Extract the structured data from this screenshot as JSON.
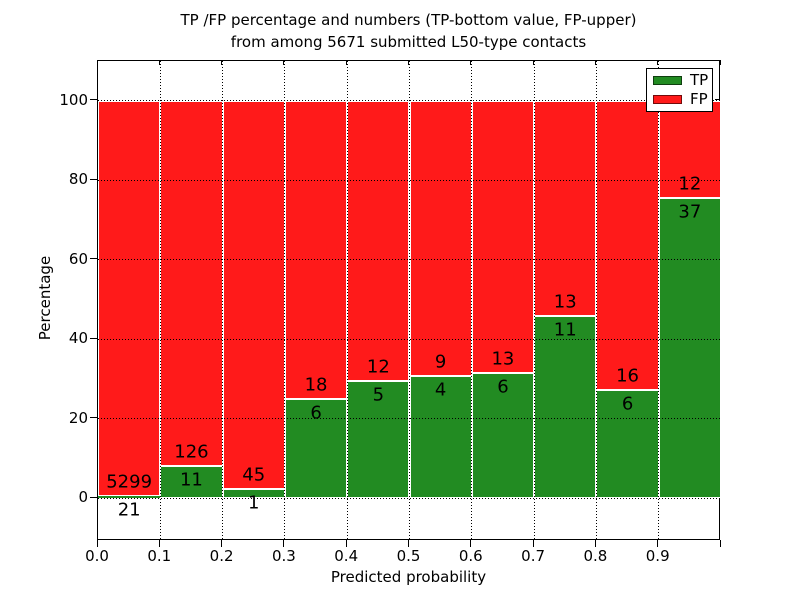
{
  "title": {
    "line1": "TP /FP percentage and numbers (TP-bottom value, FP-upper)",
    "line2": "from among 5671 submitted L50-type contacts"
  },
  "chart_data": {
    "type": "bar",
    "stacked": true,
    "normalized": "percent",
    "title": "TP /FP percentage and numbers (TP-bottom value, FP-upper) from among 5671 submitted L50-type contacts",
    "xlabel": "Predicted probability",
    "ylabel": "Percentage",
    "xlim": [
      0.0,
      1.0
    ],
    "ylim": [
      -10.8,
      110
    ],
    "grid": true,
    "x_ticks": [
      "0.0",
      "0.1",
      "0.2",
      "0.3",
      "0.4",
      "0.5",
      "0.6",
      "0.7",
      "0.8",
      "0.9"
    ],
    "y_ticks": [
      0,
      20,
      40,
      60,
      80,
      100
    ],
    "categories": [
      "0.0-0.1",
      "0.1-0.2",
      "0.2-0.3",
      "0.3-0.4",
      "0.4-0.5",
      "0.5-0.6",
      "0.6-0.7",
      "0.7-0.8",
      "0.8-0.9",
      "0.9-1.0"
    ],
    "series": [
      {
        "name": "TP",
        "color": "#228b22",
        "values": [
          21,
          11,
          1,
          6,
          5,
          4,
          6,
          11,
          6,
          37
        ]
      },
      {
        "name": "FP",
        "color": "#ff1a1a",
        "values": [
          5299,
          126,
          45,
          18,
          12,
          9,
          13,
          13,
          16,
          12
        ]
      }
    ],
    "tp_percent": [
      0.39,
      8.03,
      2.17,
      25.0,
      29.41,
      30.77,
      31.58,
      45.83,
      27.27,
      75.51
    ],
    "legend": {
      "position": "upper right",
      "entries": [
        {
          "label": "TP",
          "color": "#228b22"
        },
        {
          "label": "FP",
          "color": "#ff1a1a"
        }
      ]
    }
  }
}
